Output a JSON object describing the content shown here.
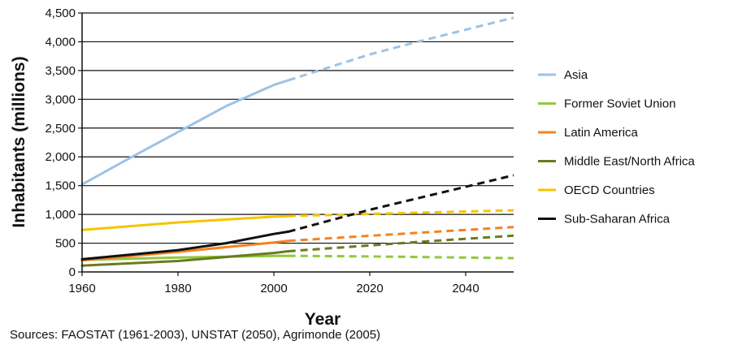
{
  "chart_data": {
    "type": "line",
    "xlabel": "Year",
    "ylabel": "Inhabitants (millions)",
    "xlim": [
      1960,
      2050
    ],
    "ylim": [
      0,
      4500
    ],
    "x_ticks": [
      1960,
      1980,
      2000,
      2020,
      2040
    ],
    "x_tick_labels": [
      "1960",
      "1980",
      "2000",
      "2020",
      "2040"
    ],
    "y_ticks": [
      0,
      500,
      1000,
      1500,
      2000,
      2500,
      3000,
      3500,
      4000,
      4500
    ],
    "y_tick_labels": [
      "0",
      "500",
      "1,000",
      "1,500",
      "2,000",
      "2,500",
      "3,000",
      "3,500",
      "4,000",
      "4,500"
    ],
    "grid": "horizontal",
    "legend_position": "right",
    "note": "Sources: FAOSTAT (1961-2003), UNSTAT (2050), Agrimonde (2005)",
    "line_styles": {
      "observed": "solid (1961-2003)",
      "projected": "dashed (2003-2050)"
    },
    "series": [
      {
        "name": "Asia",
        "color": "#9cc3e6",
        "observed": {
          "x": [
            1960,
            1970,
            1980,
            1990,
            2000,
            2003
          ],
          "y": [
            1520,
            1980,
            2430,
            2880,
            3250,
            3330
          ]
        },
        "projected": {
          "x": [
            2003,
            2020,
            2030,
            2040,
            2050
          ],
          "y": [
            3330,
            3780,
            4000,
            4210,
            4420
          ]
        }
      },
      {
        "name": "Former Soviet Union",
        "color": "#92c83e",
        "observed": {
          "x": [
            1960,
            1980,
            2000,
            2003
          ],
          "y": [
            210,
            250,
            280,
            280
          ]
        },
        "projected": {
          "x": [
            2003,
            2020,
            2050
          ],
          "y": [
            280,
            270,
            240
          ]
        }
      },
      {
        "name": "Latin America",
        "color": "#f58220",
        "observed": {
          "x": [
            1960,
            1980,
            2000,
            2003
          ],
          "y": [
            200,
            350,
            510,
            540
          ]
        },
        "projected": {
          "x": [
            2003,
            2030,
            2050
          ],
          "y": [
            540,
            680,
            780
          ]
        }
      },
      {
        "name": "Middle East/North Africa",
        "color": "#6b7a1f",
        "observed": {
          "x": [
            1960,
            1980,
            2000,
            2003
          ],
          "y": [
            110,
            190,
            330,
            360
          ]
        },
        "projected": {
          "x": [
            2003,
            2030,
            2050
          ],
          "y": [
            360,
            520,
            630
          ]
        }
      },
      {
        "name": "OECD Countries",
        "color": "#f5c400",
        "observed": {
          "x": [
            1960,
            1980,
            2000,
            2003
          ],
          "y": [
            730,
            860,
            960,
            970
          ]
        },
        "projected": {
          "x": [
            2003,
            2030,
            2050
          ],
          "y": [
            970,
            1030,
            1070
          ]
        }
      },
      {
        "name": "Sub-Saharan Africa",
        "color": "#111111",
        "observed": {
          "x": [
            1960,
            1980,
            1990,
            2000,
            2003
          ],
          "y": [
            220,
            380,
            500,
            660,
            700
          ]
        },
        "projected": {
          "x": [
            2003,
            2020,
            2040,
            2050
          ],
          "y": [
            700,
            1080,
            1480,
            1680
          ]
        }
      }
    ]
  }
}
